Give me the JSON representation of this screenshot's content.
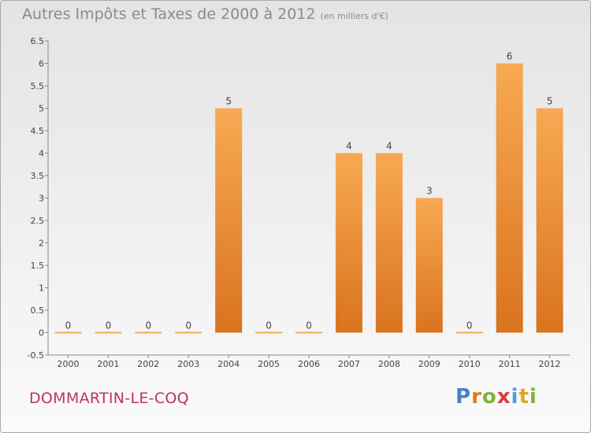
{
  "title": "Autres Impôts et Taxes de 2000 à 2012",
  "subtitle": "(en milliers d'€)",
  "commune": "DOMMARTIN-LE-COQ",
  "logo": {
    "letters": [
      "P",
      "r",
      "o",
      "x",
      "i",
      "t",
      "i"
    ],
    "colors": [
      "#4a7fc1",
      "#e07a1f",
      "#7cb53a",
      "#d93a3a",
      "#4aa0d8",
      "#e0a41f",
      "#7cb53a"
    ]
  },
  "colors": {
    "bar_light": "#f8a953",
    "bar_dark": "#d9731e",
    "axis": "#888888",
    "grid": "#aaaaaa"
  },
  "chart_data": {
    "type": "bar",
    "categories": [
      "2000",
      "2001",
      "2002",
      "2003",
      "2004",
      "2005",
      "2006",
      "2007",
      "2008",
      "2009",
      "2010",
      "2011",
      "2012"
    ],
    "values": [
      0,
      0,
      0,
      0,
      5,
      0,
      0,
      4,
      4,
      3,
      0,
      6,
      5
    ],
    "data_labels": [
      "0",
      "0",
      "0",
      "0",
      "5",
      "0",
      "0",
      "4",
      "4",
      "3",
      "0",
      "6",
      "5"
    ],
    "y_ticks": [
      "-0.5",
      "0",
      "0.5",
      "1",
      "1.5",
      "2",
      "2.5",
      "3",
      "3.5",
      "4",
      "4.5",
      "5",
      "5.5",
      "6",
      "6.5"
    ],
    "ylim": [
      -0.5,
      6.5
    ],
    "grid": false,
    "legend": "none"
  }
}
